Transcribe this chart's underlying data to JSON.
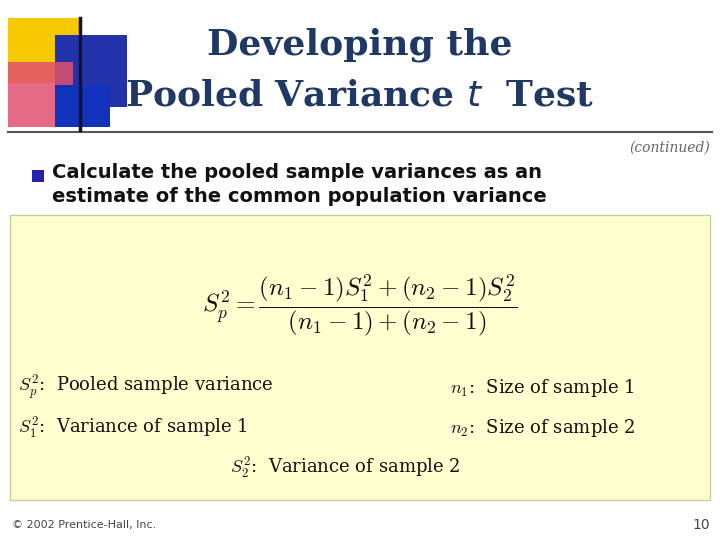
{
  "title_line1": "Developing the",
  "title_line2": "Pooled Variance $t$  Test",
  "continued": "(continued)",
  "bullet_text_line1": "Calculate the pooled sample variances as an",
  "bullet_text_line2": "estimate of the common population variance",
  "formula": "$S_p^2 = \\dfrac{(n_1-1)S_1^2+(n_2-1)S_2^2}{(n_1-1)+(n_2-1)}$",
  "label1": "$S_p^2$:  Pooled sample variance",
  "label2": "$S_1^2$:  Variance of sample 1",
  "label3": "$S_2^2$:  Variance of sample 2",
  "label4": "$n_1$:  Size of sample 1",
  "label5": "$n_2$:  Size of sample 2",
  "footer": "© 2002 Prentice-Hall, Inc.",
  "page_num": "10",
  "bg_color": "#FFFFFF",
  "title_color": "#1F3864",
  "box_bg_color": "#FFFFD0",
  "bullet_color": "#2222AA",
  "continued_color": "#666666"
}
